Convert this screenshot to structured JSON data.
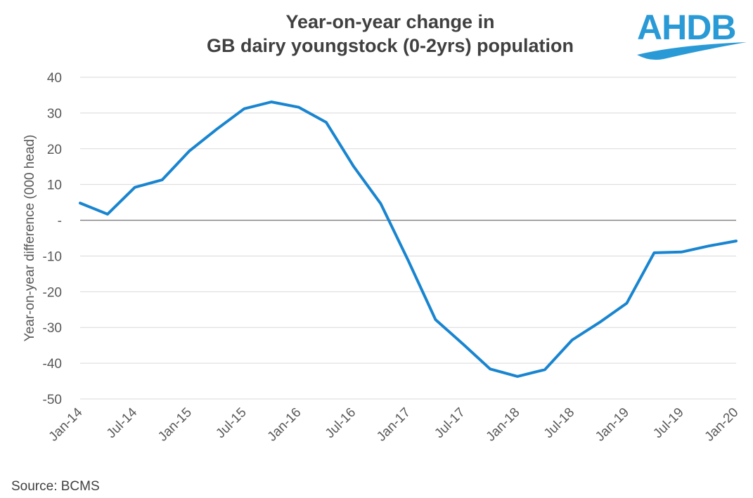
{
  "title_lines": [
    "Year-on-year change in",
    "GB dairy youngstock (0-2yrs) population"
  ],
  "logo_text": "AHDB",
  "source": "Source: BCMS",
  "colors": {
    "line": "#1985D0",
    "grid": "#D9D9D9",
    "zero": "#7F7F7F",
    "text": "#595959",
    "brand": "#2A9AD6"
  },
  "chart_data": {
    "type": "line",
    "title": "Year-on-year change in GB dairy youngstock (0-2yrs) population",
    "xlabel": "",
    "ylabel": "Year-on-year difference (000 head)",
    "ylim": [
      -50,
      40
    ],
    "yticks": [
      40,
      30,
      20,
      10,
      0,
      -10,
      -20,
      -30,
      -40,
      -50
    ],
    "ytick_labels": [
      "40",
      "30",
      "20",
      "10",
      "-",
      "-10",
      "-20",
      "-30",
      "-40",
      "-50"
    ],
    "xtick_labels": [
      "Jan-14",
      "Jul-14",
      "Jan-15",
      "Jul-15",
      "Jan-16",
      "Jul-16",
      "Jan-17",
      "Jul-17",
      "Jan-18",
      "Jul-18",
      "Jan-19",
      "Jul-19",
      "Jan-20"
    ],
    "x_period_months": 72,
    "series": [
      {
        "name": "Year-on-year difference",
        "x_months": [
          0,
          3,
          6,
          9,
          12,
          15,
          18,
          21,
          24,
          27,
          30,
          33,
          36,
          39,
          42,
          45,
          48,
          51,
          54,
          57,
          60,
          63,
          66,
          69,
          72
        ],
        "values": [
          4.8,
          1.7,
          9.2,
          11.3,
          19.4,
          25.5,
          31.2,
          33.1,
          31.6,
          27.4,
          15.1,
          4.6,
          -11.2,
          -27.8,
          -34.6,
          -41.6,
          -43.7,
          -41.8,
          -33.5,
          -28.6,
          -23.2,
          -9.1,
          -8.9,
          -7.2,
          -5.8
        ]
      }
    ]
  }
}
